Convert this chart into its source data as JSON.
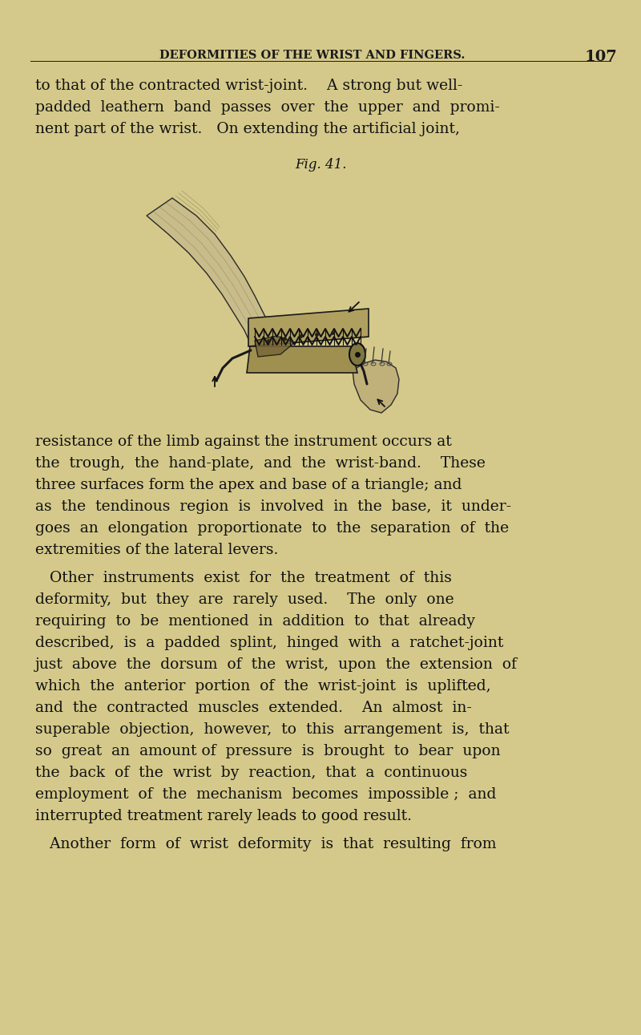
{
  "background_color": "#d4c98a",
  "header_text": "DEFORMITIES OF THE WRIST AND FINGERS.",
  "page_number": "107",
  "header_fontsize": 10.5,
  "header_color": "#1a1a1a",
  "body_color": "#111111",
  "body_fontsize": 13.5,
  "fig_label": "Fig. 41.",
  "fig_label_fontsize": 12,
  "paragraph1": [
    "to that of the contracted wrist-joint.    A strong but well-",
    "padded  leathern  band  passes  over  the  upper  and  promi-",
    "nent part of the wrist.   On extending the artificial joint,"
  ],
  "paragraph2": [
    "resistance of the limb against the instrument occurs at",
    "the  trough,  the  hand-plate,  and  the  wrist-band.    These",
    "three surfaces form the apex and base of a triangle; and",
    "as  the  tendinous  region  is  involved  in  the  base,  it  under-",
    "goes  an  elongation  proportionate  to  the  separation  of  the",
    "extremities of the lateral levers."
  ],
  "paragraph3": [
    "   Other  instruments  exist  for  the  treatment  of  this",
    "deformity,  but  they  are  rarely  used.    The  only  one",
    "requiring  to  be  mentioned  in  addition  to  that  already",
    "described,  is  a  padded  splint,  hinged  with  a  ratchet-joint",
    "just  above  the  dorsum  of  the  wrist,  upon  the  extension  of",
    "which  the  anterior  portion  of  the  wrist-joint  is  uplifted,",
    "and  the  contracted  muscles  extended.    An  almost  in-",
    "superable  objection,  however,  to  this  arrangement  is,  that",
    "so  great  an  amount of  pressure  is  brought  to  bear  upon",
    "the  back  of  the  wrist  by  reaction,  that  a  continuous",
    "employment  of  the  mechanism  becomes  impossible ;  and",
    "interrupted treatment rarely leads to good result."
  ],
  "paragraph4": [
    "   Another  form  of  wrist  deformity  is  that  resulting  from"
  ]
}
